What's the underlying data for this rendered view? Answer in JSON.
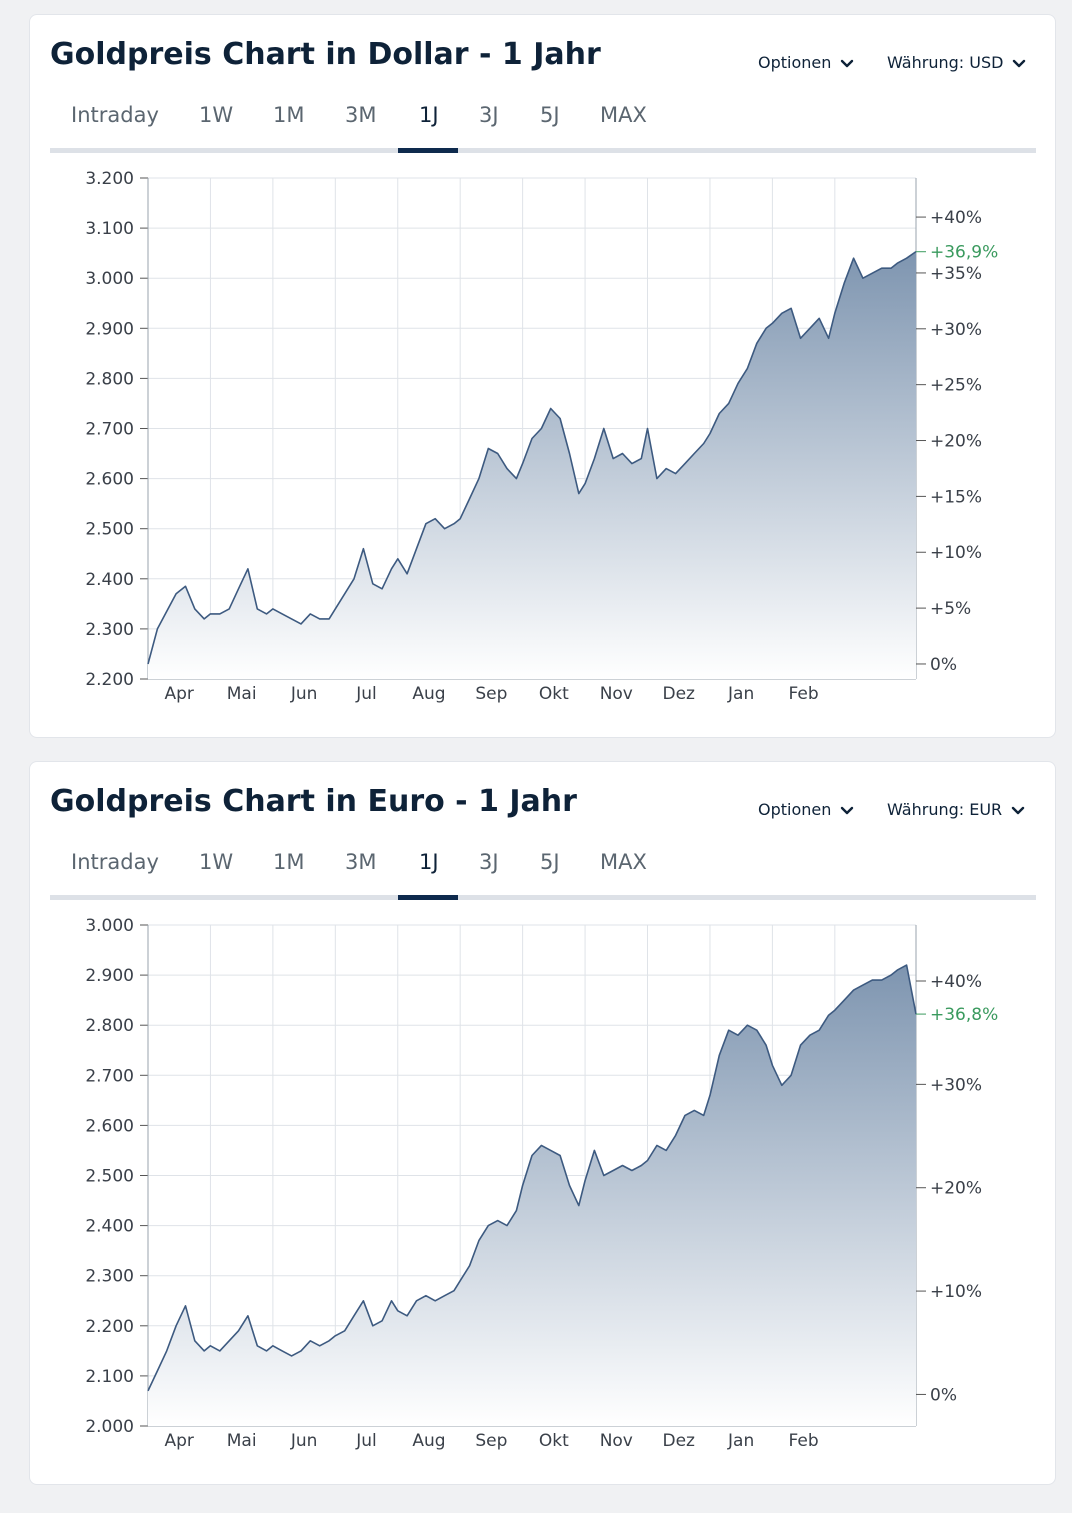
{
  "cards": [
    {
      "title": "Goldpreis Chart in Dollar - 1 Jahr",
      "options_label": "Optionen",
      "currency_label": "Währung: USD",
      "tabs": [
        "Intraday",
        "1W",
        "1M",
        "3M",
        "1J",
        "3J",
        "5J",
        "MAX"
      ],
      "active_tab": "1J"
    },
    {
      "title": "Goldpreis Chart in Euro - 1 Jahr",
      "options_label": "Optionen",
      "currency_label": "Währung: EUR",
      "tabs": [
        "Intraday",
        "1W",
        "1M",
        "3M",
        "1J",
        "3J",
        "5J",
        "MAX"
      ],
      "active_tab": "1J"
    }
  ],
  "colors": {
    "line": "#3d5a80",
    "fill_top": "#7e95b0",
    "fill_bottom": "#ffffff",
    "grid": "#dfe3e8",
    "highlight": "#3a9a5e",
    "tab_active": "#0e2a4d"
  },
  "chart_data": [
    {
      "type": "area",
      "title": "Goldpreis Chart in Dollar - 1 Jahr",
      "months": [
        "Apr",
        "Mai",
        "Jun",
        "Jul",
        "Aug",
        "Sep",
        "Okt",
        "Nov",
        "Dez",
        "Jan",
        "Feb"
      ],
      "y_ticks": [
        "2.200",
        "2.300",
        "2.400",
        "2.500",
        "2.600",
        "2.700",
        "2.800",
        "2.900",
        "3.000",
        "3.100",
        "3.200"
      ],
      "ylim": [
        2200,
        3200
      ],
      "right_ticks": [
        "0%",
        "+5%",
        "+10%",
        "+15%",
        "+20%",
        "+25%",
        "+30%",
        "+35%",
        "+40%"
      ],
      "right_tick_values": [
        0,
        5,
        10,
        15,
        20,
        25,
        30,
        35,
        40
      ],
      "current_change": "+36,9%",
      "current_change_value": 36.9,
      "base_value": 2230,
      "x_range": [
        0,
        12.3
      ],
      "x": [
        0,
        0.15,
        0.3,
        0.45,
        0.6,
        0.75,
        0.9,
        1.0,
        1.15,
        1.3,
        1.45,
        1.6,
        1.75,
        1.9,
        2.0,
        2.15,
        2.3,
        2.45,
        2.6,
        2.75,
        2.9,
        3.0,
        3.15,
        3.3,
        3.45,
        3.6,
        3.75,
        3.9,
        4.0,
        4.15,
        4.3,
        4.45,
        4.6,
        4.75,
        4.9,
        5.0,
        5.15,
        5.3,
        5.45,
        5.6,
        5.75,
        5.9,
        6.0,
        6.15,
        6.3,
        6.45,
        6.6,
        6.75,
        6.9,
        7.0,
        7.15,
        7.3,
        7.45,
        7.6,
        7.75,
        7.9,
        8.0,
        8.15,
        8.3,
        8.45,
        8.6,
        8.75,
        8.9,
        9.0,
        9.15,
        9.3,
        9.45,
        9.6,
        9.75,
        9.9,
        10.0,
        10.15,
        10.3,
        10.45,
        10.6,
        10.75,
        10.9,
        11.0,
        11.15,
        11.3,
        11.45,
        11.6,
        11.75,
        11.9,
        12.0,
        12.15,
        12.3
      ],
      "y": [
        2230,
        2300,
        2335,
        2370,
        2385,
        2340,
        2320,
        2330,
        2330,
        2340,
        2380,
        2420,
        2340,
        2330,
        2340,
        2330,
        2320,
        2310,
        2330,
        2320,
        2320,
        2340,
        2370,
        2400,
        2460,
        2390,
        2380,
        2420,
        2440,
        2410,
        2460,
        2510,
        2520,
        2500,
        2510,
        2520,
        2560,
        2600,
        2660,
        2650,
        2620,
        2600,
        2630,
        2680,
        2700,
        2740,
        2720,
        2650,
        2570,
        2590,
        2640,
        2700,
        2640,
        2650,
        2630,
        2640,
        2700,
        2600,
        2620,
        2610,
        2630,
        2650,
        2670,
        2690,
        2730,
        2750,
        2790,
        2820,
        2870,
        2900,
        2910,
        2930,
        2940,
        2880,
        2900,
        2920,
        2880,
        2930,
        2990,
        3040,
        3000,
        3010,
        3020,
        3020,
        3030,
        3040,
        3053
      ]
    },
    {
      "type": "area",
      "title": "Goldpreis Chart in Euro - 1 Jahr",
      "months": [
        "Apr",
        "Mai",
        "Jun",
        "Jul",
        "Aug",
        "Sep",
        "Okt",
        "Nov",
        "Dez",
        "Jan",
        "Feb"
      ],
      "y_ticks": [
        "2.000",
        "2.100",
        "2.200",
        "2.300",
        "2.400",
        "2.500",
        "2.600",
        "2.700",
        "2.800",
        "2.900",
        "3.000"
      ],
      "ylim": [
        2000,
        3000
      ],
      "right_ticks": [
        "0%",
        "+10%",
        "+20%",
        "+30%",
        "+40%"
      ],
      "right_tick_values": [
        0,
        10,
        20,
        30,
        40
      ],
      "current_change": "+36,8%",
      "current_change_value": 36.8,
      "base_value": 2063,
      "x_range": [
        0,
        12.3
      ],
      "x": [
        0,
        0.15,
        0.3,
        0.45,
        0.6,
        0.75,
        0.9,
        1.0,
        1.15,
        1.3,
        1.45,
        1.6,
        1.75,
        1.9,
        2.0,
        2.15,
        2.3,
        2.45,
        2.6,
        2.75,
        2.9,
        3.0,
        3.15,
        3.3,
        3.45,
        3.6,
        3.75,
        3.9,
        4.0,
        4.15,
        4.3,
        4.45,
        4.6,
        4.75,
        4.9,
        5.0,
        5.15,
        5.3,
        5.45,
        5.6,
        5.75,
        5.9,
        6.0,
        6.15,
        6.3,
        6.45,
        6.6,
        6.75,
        6.9,
        7.0,
        7.15,
        7.3,
        7.45,
        7.6,
        7.75,
        7.9,
        8.0,
        8.15,
        8.3,
        8.45,
        8.6,
        8.75,
        8.9,
        9.0,
        9.15,
        9.3,
        9.45,
        9.6,
        9.75,
        9.9,
        10.0,
        10.15,
        10.3,
        10.45,
        10.6,
        10.75,
        10.9,
        11.0,
        11.15,
        11.3,
        11.45,
        11.6,
        11.75,
        11.9,
        12.0,
        12.15,
        12.3
      ],
      "y": [
        2070,
        2110,
        2150,
        2200,
        2240,
        2170,
        2150,
        2160,
        2150,
        2170,
        2190,
        2220,
        2160,
        2150,
        2160,
        2150,
        2140,
        2150,
        2170,
        2160,
        2170,
        2180,
        2190,
        2220,
        2250,
        2200,
        2210,
        2250,
        2230,
        2220,
        2250,
        2260,
        2250,
        2260,
        2270,
        2290,
        2320,
        2370,
        2400,
        2410,
        2400,
        2430,
        2480,
        2540,
        2560,
        2550,
        2540,
        2480,
        2440,
        2490,
        2550,
        2500,
        2510,
        2520,
        2510,
        2520,
        2530,
        2560,
        2550,
        2580,
        2620,
        2630,
        2620,
        2660,
        2740,
        2790,
        2780,
        2800,
        2790,
        2760,
        2720,
        2680,
        2700,
        2760,
        2780,
        2790,
        2820,
        2830,
        2850,
        2870,
        2880,
        2890,
        2890,
        2900,
        2910,
        2920,
        2822
      ]
    }
  ]
}
